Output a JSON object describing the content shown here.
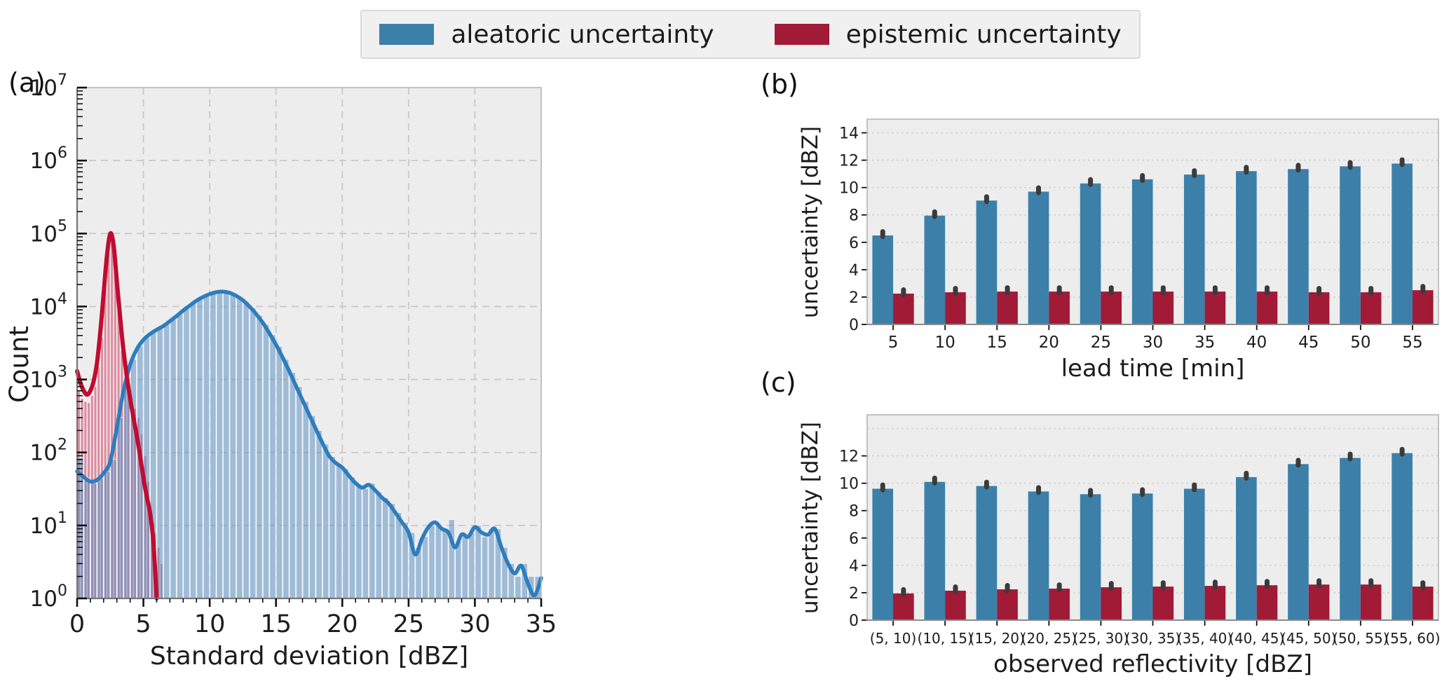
{
  "legend": {
    "items": [
      {
        "label": "aleatoric uncertainty",
        "color": "#3c80a9"
      },
      {
        "label": "epistemic uncertainty",
        "color": "#a11a36"
      }
    ]
  },
  "colors": {
    "aleatoric_bar": "#3c80a9",
    "epistemic_bar": "#a11a36",
    "aleatoric_line": "#2e7dbd",
    "epistemic_line": "#c00c30",
    "aleatoric_hist_fill": "rgba(88,141,193,0.52)",
    "epistemic_hist_fill": "#d98da0",
    "plot_bg": "#ededed",
    "grid_a": "#c9c9c9",
    "grid_bc": "#d2d2d2",
    "spine_dark": "#777777",
    "spine_light": "#b5b5b5",
    "tick": "#111111",
    "error_marker": "#3b3b3b"
  },
  "chart_data": [
    {
      "id": "a",
      "type": "histogram",
      "panel_label": "(a)",
      "xlabel": "Standard deviation [dBZ]",
      "ylabel": "Count",
      "xlim": [
        0,
        35
      ],
      "xticks": [
        0,
        5,
        10,
        15,
        20,
        25,
        30,
        35
      ],
      "yscale": "log",
      "ylim": [
        1,
        10000000
      ],
      "ytick_exponents": [
        0,
        1,
        2,
        3,
        4,
        5,
        6,
        7
      ],
      "grid": true,
      "series": [
        {
          "name": "aleatoric uncertainty",
          "hist": {
            "bin_start": 0,
            "bin_width": 0.5,
            "counts": [
              85,
              45,
              38,
              44,
              55,
              80,
              300,
              850,
              1900,
              2900,
              3800,
              4400,
              5000,
              5700,
              6600,
              7800,
              9300,
              11000,
              12800,
              14200,
              15300,
              16000,
              15800,
              15000,
              13600,
              11700,
              9600,
              7600,
              5700,
              4100,
              2850,
              1900,
              1250,
              800,
              500,
              320,
              200,
              130,
              88,
              70,
              60,
              46,
              36,
              32,
              38,
              29,
              24,
              20,
              15,
              11,
              8,
              5,
              7,
              10,
              10,
              9,
              12,
              6,
              7,
              8,
              10,
              7,
              9,
              9,
              5,
              3,
              2,
              3,
              2,
              2
            ]
          },
          "kde": [
            [
              0,
              55
            ],
            [
              0.5,
              46
            ],
            [
              1,
              40
            ],
            [
              1.5,
              42
            ],
            [
              2,
              52
            ],
            [
              2.5,
              75
            ],
            [
              3,
              220
            ],
            [
              3.5,
              700
            ],
            [
              4,
              1600
            ],
            [
              4.5,
              2600
            ],
            [
              5,
              3500
            ],
            [
              5.5,
              4200
            ],
            [
              6,
              4800
            ],
            [
              6.5,
              5400
            ],
            [
              7,
              6300
            ],
            [
              7.5,
              7400
            ],
            [
              8,
              8800
            ],
            [
              8.5,
              10300
            ],
            [
              9,
              12000
            ],
            [
              9.5,
              13500
            ],
            [
              10,
              14800
            ],
            [
              10.5,
              15700
            ],
            [
              11,
              16000
            ],
            [
              11.5,
              15400
            ],
            [
              12,
              14000
            ],
            [
              12.5,
              12200
            ],
            [
              13,
              10000
            ],
            [
              13.5,
              7900
            ],
            [
              14,
              6000
            ],
            [
              14.5,
              4300
            ],
            [
              15,
              3000
            ],
            [
              15.5,
              2000
            ],
            [
              16,
              1300
            ],
            [
              16.5,
              820
            ],
            [
              17,
              520
            ],
            [
              17.5,
              330
            ],
            [
              18,
              210
            ],
            [
              18.5,
              135
            ],
            [
              19,
              90
            ],
            [
              19.5,
              72
            ],
            [
              20,
              62
            ],
            [
              20.5,
              48
            ],
            [
              21,
              38
            ],
            [
              21.5,
              33
            ],
            [
              22,
              36
            ],
            [
              22.5,
              30
            ],
            [
              23,
              24
            ],
            [
              23.5,
              20
            ],
            [
              24,
              15
            ],
            [
              24.5,
              11
            ],
            [
              25,
              8
            ],
            [
              25.5,
              4
            ],
            [
              26,
              6.5
            ],
            [
              26.5,
              9.5
            ],
            [
              27,
              11
            ],
            [
              27.5,
              9
            ],
            [
              28,
              8
            ],
            [
              28.5,
              5
            ],
            [
              29,
              7.5
            ],
            [
              29.5,
              7
            ],
            [
              30,
              9.5
            ],
            [
              30.5,
              8
            ],
            [
              31,
              7.5
            ],
            [
              31.5,
              9
            ],
            [
              32,
              5
            ],
            [
              32.5,
              3
            ],
            [
              33,
              2.2
            ],
            [
              33.5,
              2.8
            ],
            [
              34,
              1.6
            ],
            [
              34.5,
              1.1
            ],
            [
              35,
              1.9
            ]
          ]
        },
        {
          "name": "epistemic uncertainty",
          "hist": {
            "bin_start": 0,
            "bin_width": 0.25,
            "counts": [
              700,
              550,
              500,
              480,
              600,
              800,
              1500,
              3800,
              30000,
              62000,
              95000,
              40000,
              15000,
              2500,
              900,
              650,
              520,
              400,
              300,
              180,
              90,
              40,
              15,
              8,
              5,
              3
            ]
          },
          "kde": [
            [
              0,
              1300
            ],
            [
              0.25,
              900
            ],
            [
              0.5,
              700
            ],
            [
              0.75,
              620
            ],
            [
              1,
              700
            ],
            [
              1.25,
              950
            ],
            [
              1.5,
              1700
            ],
            [
              1.75,
              4500
            ],
            [
              2,
              15000
            ],
            [
              2.25,
              50000
            ],
            [
              2.5,
              100000
            ],
            [
              2.75,
              70000
            ],
            [
              3,
              22000
            ],
            [
              3.25,
              7000
            ],
            [
              3.5,
              2500
            ],
            [
              3.75,
              1100
            ],
            [
              4,
              550
            ],
            [
              4.25,
              300
            ],
            [
              4.5,
              170
            ],
            [
              4.75,
              90
            ],
            [
              5,
              45
            ],
            [
              5.25,
              25
            ],
            [
              5.5,
              15
            ],
            [
              5.75,
              6
            ],
            [
              6,
              1
            ]
          ]
        }
      ]
    },
    {
      "id": "b",
      "type": "bar",
      "panel_label": "(b)",
      "xlabel": "lead time [min]",
      "ylabel": "uncertainty [dBZ]",
      "categories": [
        "5",
        "10",
        "15",
        "20",
        "25",
        "30",
        "35",
        "40",
        "45",
        "50",
        "55"
      ],
      "series": [
        {
          "name": "aleatoric uncertainty",
          "values": [
            6.5,
            7.95,
            9.05,
            9.7,
            10.3,
            10.6,
            10.95,
            11.2,
            11.35,
            11.55,
            11.75
          ]
        },
        {
          "name": "epistemic uncertainty",
          "values": [
            2.25,
            2.35,
            2.4,
            2.4,
            2.4,
            2.4,
            2.4,
            2.4,
            2.35,
            2.35,
            2.5
          ]
        }
      ],
      "error_markers": true,
      "ylim": [
        0,
        15
      ],
      "yticks_labeled": [
        0,
        2,
        4,
        6,
        8,
        10,
        12,
        14
      ],
      "gridlines": [
        2,
        4,
        6,
        8,
        10,
        12,
        14
      ],
      "grid": true,
      "legend_position": "top-of-figure"
    },
    {
      "id": "c",
      "type": "bar",
      "panel_label": "(c)",
      "xlabel": "observed reflectivity [dBZ]",
      "ylabel": "uncertainty [dBZ]",
      "categories": [
        "(5, 10)",
        "(10, 15)",
        "(15, 20)",
        "(20, 25)",
        "(25, 30)",
        "(30, 35)",
        "(35, 40)",
        "(40, 45)",
        "(45, 50)",
        "(50, 55)",
        "(55, 60)"
      ],
      "series": [
        {
          "name": "aleatoric uncertainty",
          "values": [
            9.6,
            10.1,
            9.8,
            9.4,
            9.2,
            9.25,
            9.6,
            10.45,
            11.4,
            11.85,
            12.2
          ]
        },
        {
          "name": "epistemic uncertainty",
          "values": [
            1.95,
            2.15,
            2.25,
            2.3,
            2.4,
            2.45,
            2.5,
            2.55,
            2.6,
            2.6,
            2.45
          ]
        }
      ],
      "error_markers": true,
      "ylim": [
        0,
        15
      ],
      "yticks_labeled": [
        0,
        2,
        4,
        6,
        8,
        10,
        12
      ],
      "gridlines": [
        2,
        4,
        6,
        8,
        10,
        12,
        14
      ],
      "grid": true,
      "legend_position": "top-of-figure"
    }
  ]
}
